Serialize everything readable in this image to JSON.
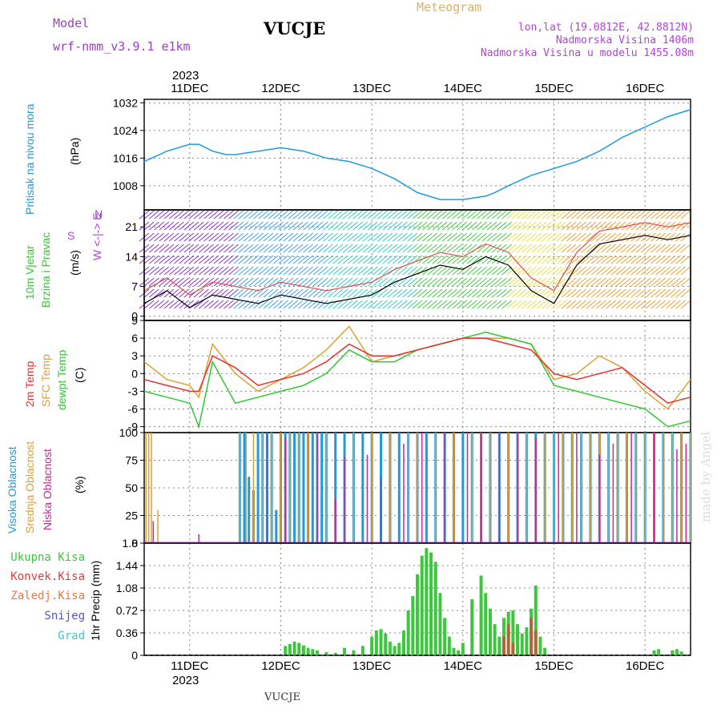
{
  "header": {
    "model_label": "Model",
    "model_name": "wrf-nmm_v3.9.1 e1km",
    "station": "VUCJE",
    "meteogram_label": "Meteogram",
    "location": "lon,lat (19.0812E, 42.8812N)",
    "elevation": "Nadmorska Visina 1406m",
    "model_elevation": "Nadmorska Visina u modelu 1455.08m"
  },
  "footer": {
    "station": "VUCJE",
    "credit": "made by Angel"
  },
  "colors": {
    "pressure": "#1e9be0",
    "temp": "#e83030",
    "sfc": "#e0a030",
    "dew": "#30c830",
    "high_cloud": "#1e9be0",
    "mid_cloud": "#e0a030",
    "low_cloud": "#c82890",
    "total_precip": "#3cc83c",
    "conv_precip": "#e03c3c",
    "wind_label": "#30c830",
    "wind_dir": "#b044d8"
  },
  "axis": {
    "top_year": "2023",
    "bottom_year": "2023",
    "top_dates": [
      "11DEC",
      "12DEC",
      "13DEC",
      "14DEC",
      "15DEC",
      "16DEC"
    ],
    "bottom_dates": [
      "11DEC",
      "12DEC",
      "13DEC",
      "14DEC",
      "15DEC",
      "16DEC"
    ]
  },
  "panels": {
    "pressure": {
      "label": "Pritisak na nivou mora",
      "unit": "(hPa)",
      "ticks": [
        "1008",
        "1016",
        "1024",
        "1032"
      ]
    },
    "wind": {
      "label1": "10m Vjetar",
      "label2": "Brzina i Pravac",
      "unit": "(m/s)",
      "ticks": [
        "0",
        "7",
        "14",
        "21"
      ],
      "compass": "W <-|-> E",
      "compass_s": "S",
      "compass_n": "N"
    },
    "temp": {
      "label1": "2m Temp",
      "label2": "SFC Temp",
      "label3": "dewpt Temp",
      "unit": "(C)",
      "ticks": [
        "-9",
        "-6",
        "-3",
        "0",
        "3",
        "6",
        "9"
      ]
    },
    "cloud": {
      "label1": "Visoka Oblacnost",
      "label2": "Srednja Oblacnost",
      "label3": "Niska Oblacnost",
      "unit": "(%)",
      "ticks": [
        "0",
        "25",
        "50",
        "75",
        "100"
      ]
    },
    "precip": {
      "label": "1hr Precip (mm)",
      "ticks": [
        "0",
        "0.36",
        "0.72",
        "1.08",
        "1.44",
        "1.8"
      ]
    }
  },
  "precip_legend": [
    "Ukupna Kisa",
    "Konvek.Kisa",
    "Zaledj.Kisa",
    "Snijeg",
    "Grad"
  ],
  "chart_data": [
    {
      "type": "line",
      "title": "Pritisak na nivou mora",
      "ylabel": "(hPa)",
      "ylim": [
        1001,
        1033
      ],
      "x_unit": "days from 10DEC 12UTC",
      "series": [
        {
          "name": "Pritisak na nivou mora",
          "x": [
            0,
            0.25,
            0.5,
            0.6,
            0.75,
            0.9,
            1.0,
            1.25,
            1.5,
            1.75,
            2.0,
            2.25,
            2.5,
            2.75,
            3.0,
            3.25,
            3.5,
            3.75,
            3.85,
            4.0,
            4.25,
            4.5,
            4.75,
            5.0,
            5.25,
            5.5,
            5.75,
            6.0
          ],
          "y": [
            1015,
            1018,
            1020,
            1020,
            1018,
            1017,
            1017,
            1018,
            1019,
            1018,
            1016,
            1015,
            1013,
            1010,
            1006,
            1004,
            1004,
            1005,
            1006,
            1008,
            1011,
            1013,
            1015,
            1018,
            1022,
            1025,
            1028,
            1030
          ]
        }
      ]
    },
    {
      "type": "line",
      "title": "10m Vjetar Brzina i Pravac",
      "ylabel": "(m/s)",
      "ylim": [
        -1,
        25
      ],
      "x_unit": "days from 10DEC 12UTC",
      "series": [
        {
          "name": "Brzina",
          "x": [
            0,
            0.25,
            0.5,
            0.75,
            1.0,
            1.25,
            1.5,
            1.75,
            2.0,
            2.25,
            2.5,
            2.75,
            3.0,
            3.25,
            3.5,
            3.75,
            4.0,
            4.25,
            4.5,
            4.75,
            5.0,
            5.25,
            5.5,
            5.75,
            6.0
          ],
          "y": [
            3,
            6,
            2,
            5,
            4,
            3,
            5,
            4,
            3,
            4,
            5,
            8,
            10,
            12,
            11,
            14,
            12,
            6,
            3,
            12,
            17,
            18,
            19,
            18,
            19
          ]
        }
      ]
    },
    {
      "type": "line",
      "title": "2m Temp / SFC Temp / dewpt Temp",
      "ylabel": "(C)",
      "ylim": [
        -10,
        9
      ],
      "x_unit": "days from 10DEC 12UTC",
      "series": [
        {
          "name": "2m Temp",
          "x": [
            0,
            0.25,
            0.5,
            0.6,
            0.75,
            1.0,
            1.25,
            1.5,
            1.75,
            2.0,
            2.25,
            2.5,
            2.75,
            3.0,
            3.25,
            3.5,
            3.75,
            4.0,
            4.25,
            4.5,
            4.75,
            5.0,
            5.25,
            5.5,
            5.75,
            6.0
          ],
          "y": [
            -1,
            -2,
            -3,
            -3,
            3,
            1,
            -2,
            -1,
            0,
            2,
            5,
            3,
            3,
            4,
            5,
            6,
            6,
            5,
            4,
            0,
            -1,
            0,
            1,
            -2,
            -5,
            -4
          ]
        },
        {
          "name": "SFC Temp",
          "x": [
            0,
            0.25,
            0.5,
            0.6,
            0.75,
            1.0,
            1.25,
            1.5,
            1.75,
            2.0,
            2.25,
            2.5,
            2.75,
            3.0,
            3.25,
            3.5,
            3.75,
            4.0,
            4.25,
            4.5,
            4.75,
            5.0,
            5.25,
            5.5,
            5.75,
            6.0
          ],
          "y": [
            2,
            -1,
            -2,
            -4,
            5,
            0,
            -3,
            -1,
            1,
            4,
            8,
            2,
            3,
            4,
            5,
            6,
            6,
            6,
            5,
            -1,
            0,
            3,
            1,
            -3,
            -6,
            -1
          ]
        },
        {
          "name": "dewpt Temp",
          "x": [
            0,
            0.25,
            0.5,
            0.6,
            0.75,
            1.0,
            1.25,
            1.5,
            1.75,
            2.0,
            2.25,
            2.5,
            2.75,
            3.0,
            3.25,
            3.5,
            3.75,
            4.0,
            4.25,
            4.5,
            4.75,
            5.0,
            5.25,
            5.5,
            5.75,
            6.0
          ],
          "y": [
            -3,
            -4,
            -5,
            -9,
            2,
            -5,
            -4,
            -3,
            -2,
            0,
            4,
            2,
            2,
            4,
            5,
            6,
            7,
            6,
            5,
            -2,
            -3,
            -4,
            -5,
            -6,
            -9,
            -8
          ]
        }
      ]
    },
    {
      "type": "bar",
      "title": "Oblacnost",
      "ylabel": "(%)",
      "ylim": [
        0,
        100
      ],
      "x_unit": "days from 10DEC 12UTC",
      "series": [
        {
          "name": "Visoka Oblacnost",
          "x": [
            1.05,
            1.1,
            1.15,
            1.2,
            1.25,
            1.3,
            1.35,
            1.4,
            1.45,
            1.5,
            1.55,
            1.6,
            1.65,
            1.7,
            1.75,
            1.8,
            1.85,
            1.9,
            1.95,
            2.0,
            2.1,
            2.2,
            2.3,
            2.4,
            2.5,
            2.6,
            2.7,
            2.8,
            2.9,
            3.0,
            3.1,
            3.2,
            3.3,
            3.4,
            3.5,
            3.6,
            3.7,
            3.8,
            3.9,
            4.0,
            4.1,
            4.2,
            4.3,
            4.4,
            4.5,
            4.6,
            4.7,
            4.8,
            4.9,
            5.0,
            5.1,
            5.2,
            5.3,
            5.4,
            5.5,
            5.6,
            5.7,
            5.8,
            5.9,
            6.0
          ],
          "y": [
            100,
            100,
            60,
            48,
            100,
            100,
            100,
            100,
            30,
            100,
            100,
            100,
            100,
            100,
            100,
            100,
            100,
            100,
            100,
            100,
            100,
            100,
            100,
            100,
            100,
            100,
            100,
            100,
            100,
            100,
            100,
            100,
            100,
            100,
            100,
            100,
            100,
            100,
            100,
            100,
            100,
            100,
            100,
            100,
            100,
            100,
            100,
            100,
            100,
            100,
            100,
            100,
            100,
            100,
            100,
            100,
            100,
            100,
            100,
            100
          ]
        },
        {
          "name": "Srednja Oblacnost",
          "x": [
            0.02,
            0.05,
            0.08,
            0.15,
            1.05,
            1.12,
            1.2,
            1.3,
            1.4,
            1.5,
            1.6,
            1.7,
            1.8,
            1.9,
            2.0,
            2.3,
            2.5,
            2.7,
            2.9,
            3.0,
            3.2,
            3.4,
            3.6,
            3.8,
            4.0,
            4.2,
            4.4,
            4.5,
            4.6,
            4.7,
            4.8,
            4.9,
            5.0,
            5.1,
            5.2,
            5.3,
            5.4,
            5.5,
            5.6,
            5.7,
            5.8,
            5.9,
            6.0
          ],
          "y": [
            100,
            100,
            100,
            30,
            100,
            100,
            100,
            100,
            100,
            100,
            100,
            100,
            100,
            100,
            100,
            100,
            100,
            100,
            100,
            100,
            100,
            100,
            100,
            100,
            100,
            100,
            100,
            100,
            100,
            100,
            100,
            100,
            100,
            100,
            100,
            100,
            100,
            100,
            100,
            100,
            100,
            100,
            100
          ]
        },
        {
          "name": "Niska Oblacnost",
          "x": [
            0.1,
            0.6,
            1.35,
            1.55,
            1.9,
            2.1,
            2.2,
            2.45,
            2.6,
            2.85,
            3.05,
            3.3,
            3.55,
            3.7,
            3.9,
            4.1,
            4.3,
            4.55,
            4.75,
            5.0,
            5.15,
            5.35,
            5.6,
            5.85,
            5.95
          ],
          "y": [
            20,
            8,
            100,
            95,
            100,
            40,
            78,
            80,
            60,
            90,
            100,
            100,
            100,
            100,
            100,
            100,
            95,
            100,
            100,
            80,
            90,
            100,
            100,
            85,
            90
          ]
        }
      ]
    },
    {
      "type": "bar",
      "title": "1hr Precip",
      "ylabel": "1hr Precip (mm)",
      "ylim": [
        0,
        1.8
      ],
      "x_unit": "days from 10DEC 12UTC",
      "series": [
        {
          "name": "Ukupna Kisa",
          "x": [
            1.55,
            1.6,
            1.65,
            1.7,
            1.75,
            1.8,
            1.85,
            1.9,
            2.0,
            2.1,
            2.2,
            2.3,
            2.4,
            2.5,
            2.55,
            2.6,
            2.65,
            2.7,
            2.75,
            2.8,
            2.85,
            2.9,
            2.95,
            3.0,
            3.05,
            3.1,
            3.15,
            3.2,
            3.25,
            3.3,
            3.35,
            3.4,
            3.45,
            3.5,
            3.6,
            3.7,
            3.75,
            3.8,
            3.85,
            3.9,
            3.95,
            4.0,
            4.05,
            4.1,
            4.15,
            4.2,
            4.25,
            4.3,
            4.35,
            4.4,
            5.6,
            5.65,
            5.8,
            5.85,
            5.9
          ],
          "y": [
            0.15,
            0.18,
            0.22,
            0.2,
            0.16,
            0.12,
            0.1,
            0.08,
            0.05,
            0.04,
            0.12,
            0.08,
            0.15,
            0.3,
            0.4,
            0.42,
            0.35,
            0.22,
            0.15,
            0.2,
            0.4,
            0.72,
            0.95,
            1.3,
            1.6,
            1.72,
            1.65,
            1.5,
            1.0,
            0.6,
            0.3,
            0.12,
            0.08,
            0.2,
            0.9,
            1.28,
            1.0,
            0.75,
            0.5,
            0.3,
            0.6,
            0.7,
            0.72,
            0.5,
            0.35,
            0.45,
            0.75,
            1.12,
            0.3,
            0.12,
            0.08,
            0.1,
            0.08,
            0.1,
            0.06
          ]
        },
        {
          "name": "Konvek.Kisa",
          "x": [
            3.95,
            4.0,
            4.05,
            4.25,
            4.3
          ],
          "y": [
            0.3,
            0.5,
            0.2,
            0.6,
            0.4
          ]
        }
      ]
    }
  ]
}
